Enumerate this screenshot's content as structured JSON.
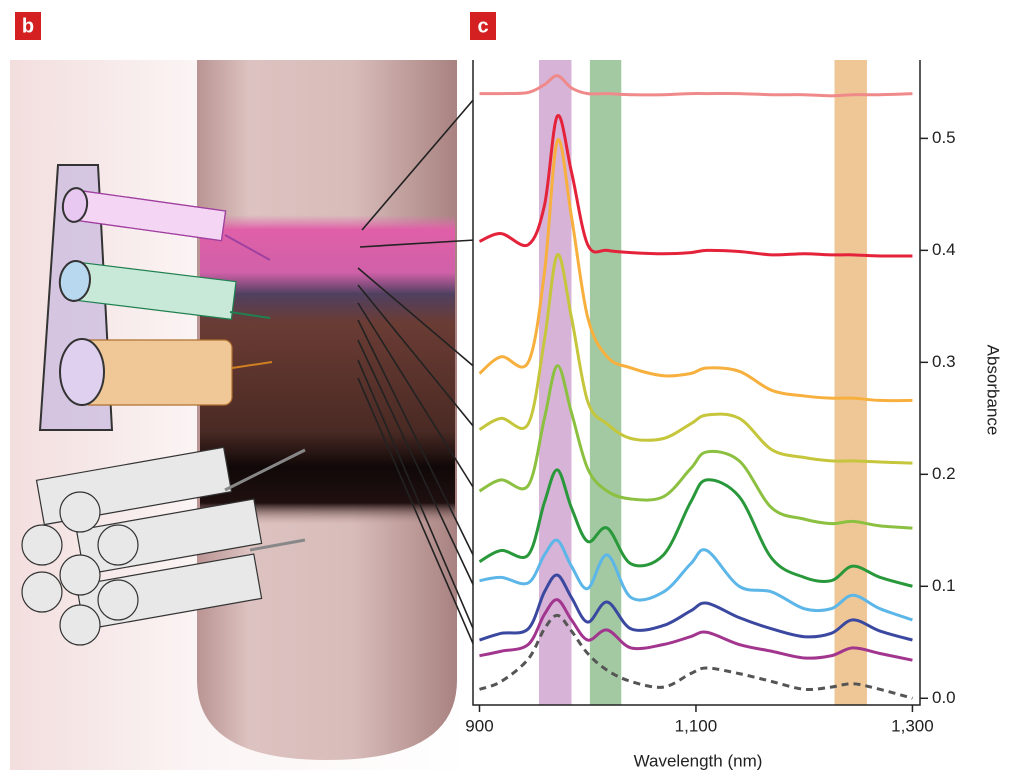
{
  "panel_labels": [
    "b",
    "c"
  ],
  "chart_data": {
    "type": "line",
    "x_label": "Wavelength (nm)",
    "y_label": "Absorbance",
    "xlim": [
      894,
      1307
    ],
    "ylim": [
      -0.006,
      0.57
    ],
    "xticks": [
      900,
      {
        "value": 1100,
        "label": "1,100"
      },
      {
        "value": 1300,
        "label": "1,300"
      }
    ],
    "yticks": [
      {
        "value": 0,
        "label": "0.0"
      },
      0.1,
      0.2,
      0.3,
      0.4,
      0.5
    ],
    "y_axis_side": "right",
    "bands": [
      {
        "range": [
          955,
          985
        ],
        "color": "#cfa6d0"
      },
      {
        "range": [
          1002,
          1031
        ],
        "color": "#93bf93"
      },
      {
        "range": [
          1228,
          1258
        ],
        "color": "#ecbd85"
      }
    ],
    "x": [
      900,
      920,
      945,
      960,
      972,
      985,
      1000,
      1018,
      1040,
      1070,
      1095,
      1110,
      1140,
      1170,
      1200,
      1225,
      1245,
      1270,
      1300
    ],
    "series": [
      {
        "color": "#f08a8a",
        "values": [
          0.54,
          0.54,
          0.541,
          0.548,
          0.556,
          0.545,
          0.54,
          0.54,
          0.539,
          0.539,
          0.54,
          0.54,
          0.54,
          0.539,
          0.539,
          0.538,
          0.539,
          0.539,
          0.54
        ]
      },
      {
        "color": "#e4223a",
        "values": [
          0.408,
          0.415,
          0.405,
          0.44,
          0.52,
          0.47,
          0.405,
          0.4,
          0.398,
          0.397,
          0.398,
          0.4,
          0.399,
          0.396,
          0.397,
          0.396,
          0.396,
          0.395,
          0.395
        ]
      },
      {
        "color": "#f7b03e",
        "values": [
          0.29,
          0.305,
          0.3,
          0.38,
          0.498,
          0.43,
          0.34,
          0.305,
          0.295,
          0.288,
          0.29,
          0.295,
          0.292,
          0.275,
          0.27,
          0.268,
          0.268,
          0.266,
          0.266
        ]
      },
      {
        "color": "#c6c63c",
        "values": [
          0.24,
          0.25,
          0.245,
          0.32,
          0.396,
          0.34,
          0.265,
          0.245,
          0.232,
          0.232,
          0.245,
          0.253,
          0.25,
          0.222,
          0.215,
          0.212,
          0.212,
          0.211,
          0.21
        ]
      },
      {
        "color": "#8cc040",
        "values": [
          0.185,
          0.195,
          0.19,
          0.25,
          0.297,
          0.255,
          0.205,
          0.185,
          0.178,
          0.18,
          0.205,
          0.22,
          0.212,
          0.17,
          0.16,
          0.156,
          0.158,
          0.154,
          0.152
        ]
      },
      {
        "color": "#28983a",
        "values": [
          0.122,
          0.132,
          0.128,
          0.175,
          0.204,
          0.17,
          0.14,
          0.152,
          0.12,
          0.128,
          0.175,
          0.195,
          0.18,
          0.125,
          0.108,
          0.105,
          0.118,
          0.108,
          0.1
        ]
      },
      {
        "color": "#5cb6e8",
        "values": [
          0.105,
          0.108,
          0.103,
          0.128,
          0.141,
          0.118,
          0.098,
          0.128,
          0.09,
          0.095,
          0.12,
          0.132,
          0.1,
          0.095,
          0.08,
          0.08,
          0.092,
          0.08,
          0.07
        ]
      },
      {
        "color": "#3a48a0",
        "values": [
          0.052,
          0.058,
          0.062,
          0.095,
          0.11,
          0.09,
          0.068,
          0.086,
          0.062,
          0.065,
          0.078,
          0.085,
          0.072,
          0.062,
          0.055,
          0.058,
          0.07,
          0.06,
          0.052
        ]
      },
      {
        "color": "#a2368e",
        "values": [
          0.038,
          0.042,
          0.048,
          0.075,
          0.088,
          0.07,
          0.052,
          0.061,
          0.045,
          0.048,
          0.055,
          0.059,
          0.048,
          0.042,
          0.036,
          0.038,
          0.045,
          0.04,
          0.034
        ]
      },
      {
        "color": "#555555",
        "dashed": true,
        "values": [
          0.008,
          0.015,
          0.035,
          0.062,
          0.074,
          0.06,
          0.04,
          0.025,
          0.015,
          0.01,
          0.022,
          0.027,
          0.022,
          0.015,
          0.008,
          0.01,
          0.013,
          0.008,
          0.0
        ]
      }
    ]
  }
}
